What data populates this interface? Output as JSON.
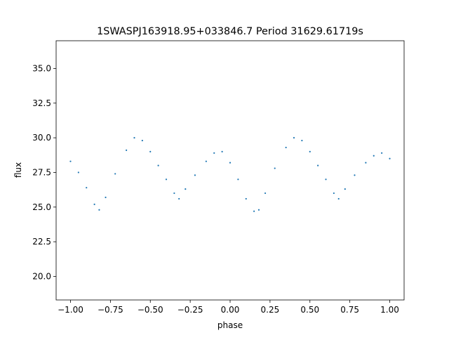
{
  "chart_data": {
    "type": "scatter",
    "title": "1SWASPJ163918.95+033846.7 Period 31629.61719s",
    "xlabel": "phase",
    "ylabel": "flux",
    "xlim": [
      -1.09,
      1.09
    ],
    "ylim": [
      18.3,
      37.0
    ],
    "x_ticks": [
      -1.0,
      -0.75,
      -0.5,
      -0.25,
      0.0,
      0.25,
      0.5,
      0.75,
      1.0
    ],
    "x_tick_labels": [
      "−1.00",
      "−0.75",
      "−0.50",
      "−0.25",
      "0.00",
      "0.25",
      "0.50",
      "0.75",
      "1.00"
    ],
    "y_ticks": [
      20.0,
      22.5,
      25.0,
      27.5,
      30.0,
      32.5,
      35.0
    ],
    "y_tick_labels": [
      "20.0",
      "22.5",
      "25.0",
      "27.5",
      "30.0",
      "32.5",
      "35.0"
    ],
    "grid": false,
    "series": [
      {
        "color": "#1f77b4",
        "marker": "dot",
        "x": [
          -1.0,
          -0.95,
          -0.9,
          -0.85,
          -0.82,
          -0.78,
          -0.72,
          -0.65,
          -0.6,
          -0.55,
          -0.5,
          -0.45,
          -0.4,
          -0.35,
          -0.32,
          -0.28,
          -0.22,
          -0.15,
          -0.1,
          -0.05,
          0.0,
          0.05,
          0.1,
          0.15,
          0.18,
          0.22,
          0.28,
          0.35,
          0.4,
          0.45,
          0.5,
          0.55,
          0.6,
          0.65,
          0.68,
          0.72,
          0.78,
          0.85,
          0.9,
          0.95,
          1.0
        ],
        "y": [
          28.3,
          27.5,
          26.4,
          25.2,
          24.8,
          25.7,
          27.4,
          29.1,
          30.0,
          29.8,
          29.0,
          28.0,
          27.0,
          26.0,
          25.6,
          26.3,
          27.3,
          28.3,
          28.9,
          29.0,
          28.2,
          27.0,
          25.6,
          24.7,
          24.8,
          26.0,
          27.8,
          29.3,
          30.0,
          29.8,
          29.0,
          28.0,
          27.0,
          26.0,
          25.6,
          26.3,
          27.3,
          28.2,
          28.7,
          28.9,
          28.5
        ]
      }
    ]
  }
}
